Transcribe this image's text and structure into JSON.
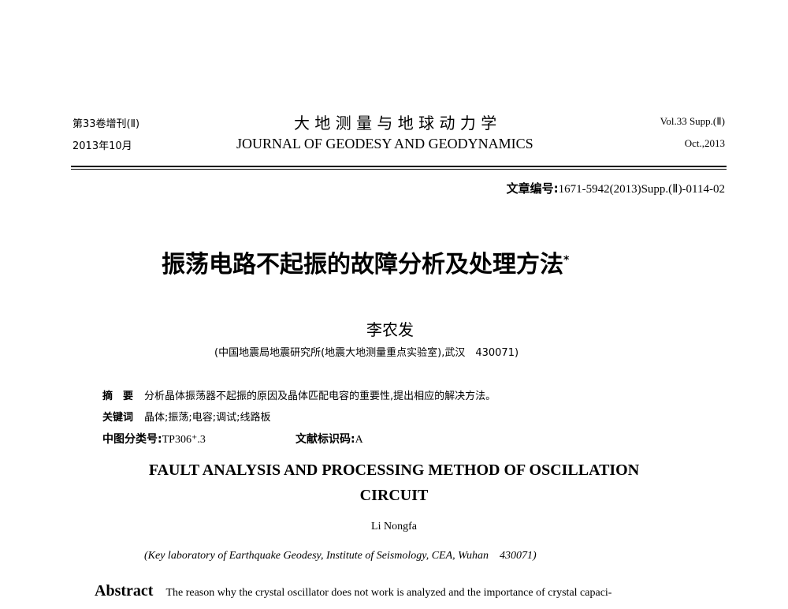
{
  "header": {
    "left_top": "第33卷增刊(Ⅱ)",
    "left_bottom": "2013年10月",
    "center_cn": "大 地 测 量 与 地 球 动 力 学",
    "center_en": "JOURNAL OF GEODESY AND GEODYNAMICS",
    "right_top": "Vol.33 Supp.(Ⅱ)",
    "right_bottom": "Oct.,2013"
  },
  "article_no": {
    "label": "文章编号:",
    "value": "1671-5942(2013)Supp.(Ⅱ)-0114-02"
  },
  "title_cn": "振荡电路不起振的故障分析及处理方法",
  "title_mark": "*",
  "author_cn": "李农发",
  "affiliation_cn": "(中国地震局地震研究所(地震大地测量重点实验室),武汉　430071)",
  "abstract_cn": {
    "label": "摘　要",
    "text": "分析晶体振荡器不起振的原因及晶体匹配电容的重要性,提出相应的解决方法。"
  },
  "keywords_cn": {
    "label": "关键词",
    "text": "晶体;振荡;电容;调试;线路板"
  },
  "clc": {
    "label": "中图分类号:",
    "value": "TP306⁺.3"
  },
  "doc_code": {
    "label": "文献标识码:",
    "value": "A"
  },
  "title_en_1": "FAULT ANALYSIS AND PROCESSING METHOD OF OSCILLATION",
  "title_en_2": "CIRCUIT",
  "author_en": "Li Nongfa",
  "affiliation_en": "(Key laboratory of Earthquake Geodesy, Institute of Seismology, CEA, Wuhan　430071)",
  "abstract_en": {
    "label": "Abstract",
    "text": "The reason why the crystal oscillator does not work is analyzed and the importance of crystal capaci-"
  }
}
